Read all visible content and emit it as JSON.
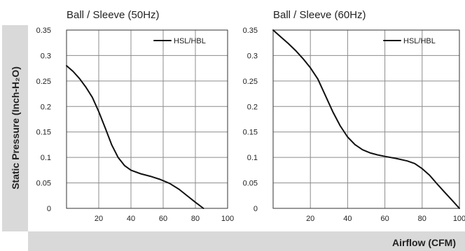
{
  "figure": {
    "ylabel": "Static Pressure (Inch-H₂O)",
    "xlabel": "Airflow (CFM)",
    "background_band_color": "#d9d9d9",
    "line_color": "#111111"
  },
  "chart_data": [
    {
      "type": "line",
      "title": "Ball / Sleeve (50Hz)",
      "xlim": [
        0,
        100
      ],
      "ylim": [
        0,
        0.35
      ],
      "x_ticks": [
        20,
        40,
        60,
        80,
        100
      ],
      "y_ticks": [
        0,
        0.05,
        0.1,
        0.15,
        0.2,
        0.25,
        0.3,
        0.35
      ],
      "x_tick_labels": [
        "20",
        "40",
        "60",
        "80",
        "100"
      ],
      "y_tick_labels": [
        "0",
        "0.05",
        "0.1",
        "0.15",
        "0.2",
        "0.25",
        "0.3",
        "0.35"
      ],
      "grid": true,
      "legend_position": "top-right",
      "series": [
        {
          "name": "HSL/HBL",
          "x": [
            0,
            4,
            8,
            12,
            16,
            20,
            24,
            28,
            32,
            36,
            40,
            46,
            52,
            58,
            64,
            70,
            76,
            80,
            85
          ],
          "y": [
            0.28,
            0.269,
            0.255,
            0.238,
            0.218,
            0.19,
            0.158,
            0.125,
            0.1,
            0.084,
            0.075,
            0.068,
            0.063,
            0.057,
            0.049,
            0.037,
            0.022,
            0.012,
            0
          ]
        }
      ]
    },
    {
      "type": "line",
      "title": "Ball / Sleeve (60Hz)",
      "xlim": [
        0,
        100
      ],
      "ylim": [
        0,
        0.35
      ],
      "x_ticks": [
        20,
        40,
        60,
        80,
        100
      ],
      "y_ticks": [
        0,
        0.05,
        0.1,
        0.15,
        0.2,
        0.25,
        0.3,
        0.35
      ],
      "x_tick_labels": [
        "20",
        "40",
        "60",
        "80",
        "100"
      ],
      "y_tick_labels": [
        "0",
        "0.05",
        "0.1",
        "0.15",
        "0.2",
        "0.25",
        "0.3",
        "0.35"
      ],
      "grid": true,
      "legend_position": "top-right",
      "series": [
        {
          "name": "HSL/HBL",
          "x": [
            0,
            4,
            8,
            12,
            16,
            20,
            24,
            28,
            32,
            36,
            40,
            44,
            48,
            52,
            56,
            60,
            66,
            72,
            76,
            80,
            84,
            88,
            92,
            96,
            100
          ],
          "y": [
            0.35,
            0.337,
            0.324,
            0.31,
            0.294,
            0.276,
            0.254,
            0.222,
            0.19,
            0.162,
            0.14,
            0.125,
            0.115,
            0.109,
            0.105,
            0.102,
            0.098,
            0.093,
            0.088,
            0.078,
            0.065,
            0.048,
            0.032,
            0.016,
            0
          ]
        }
      ]
    }
  ]
}
